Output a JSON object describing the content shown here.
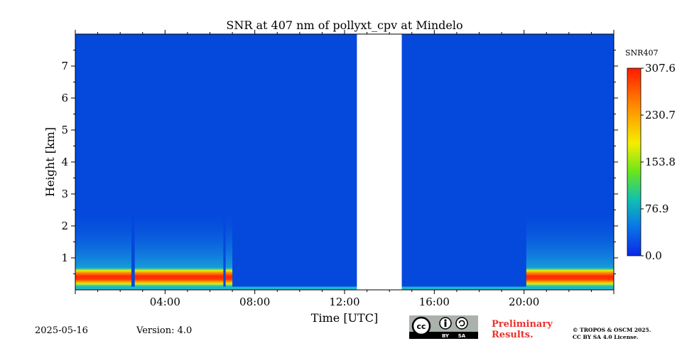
{
  "chart_data": {
    "type": "heatmap",
    "title": "SNR at 407 nm of pollyxt_cpv at Mindelo",
    "xlabel": "Time [UTC]",
    "ylabel": "Height [km]",
    "xlim_hours": [
      0,
      24
    ],
    "ylim_km": [
      0,
      8
    ],
    "x_ticks": [
      {
        "value": 4,
        "label": "04:00"
      },
      {
        "value": 8,
        "label": "08:00"
      },
      {
        "value": 12,
        "label": "12:00"
      },
      {
        "value": 16,
        "label": "16:00"
      },
      {
        "value": 20,
        "label": "20:00"
      }
    ],
    "y_ticks": [
      {
        "value": 1,
        "label": "1"
      },
      {
        "value": 2,
        "label": "2"
      },
      {
        "value": 3,
        "label": "3"
      },
      {
        "value": 4,
        "label": "4"
      },
      {
        "value": 5,
        "label": "5"
      },
      {
        "value": 6,
        "label": "6"
      },
      {
        "value": 7,
        "label": "7"
      }
    ],
    "no_data_interval_hours": [
      12.55,
      14.55
    ],
    "high_snr_layer": {
      "height_range_km": [
        0.1,
        0.7
      ],
      "time_intervals_hours": [
        [
          0.0,
          2.5
        ],
        [
          2.65,
          6.6
        ],
        [
          6.7,
          7.0
        ],
        [
          20.1,
          24.0
        ]
      ]
    },
    "colorbar": {
      "label": "SNR407",
      "min": 0.0,
      "max": 307.6,
      "ticks": [
        {
          "value": 0.0,
          "label": "0.0"
        },
        {
          "value": 76.9,
          "label": "76.9"
        },
        {
          "value": 153.8,
          "label": "153.8"
        },
        {
          "value": 230.7,
          "label": "230.7"
        },
        {
          "value": 307.6,
          "label": "307.6"
        }
      ],
      "colormap": [
        "#0000ff",
        "#0066ff",
        "#00ccaa",
        "#55ee00",
        "#ffff00",
        "#ff9900",
        "#ff0000"
      ]
    }
  },
  "footer": {
    "date": "2025-05-16",
    "version": "Version: 4.0",
    "preliminary_line1": "Preliminary",
    "preliminary_line2": "Results.",
    "copyright_line1": "© TROPOS & OSCM 2025.",
    "copyright_line2": "CC BY SA 4.0 License.",
    "license_badge": {
      "cc": "cc",
      "by": "BY",
      "sa": "SA"
    }
  },
  "colors": {
    "background_field": "#0448dc",
    "no_data": "#ffffff",
    "preliminary_text": "#e8322d"
  }
}
